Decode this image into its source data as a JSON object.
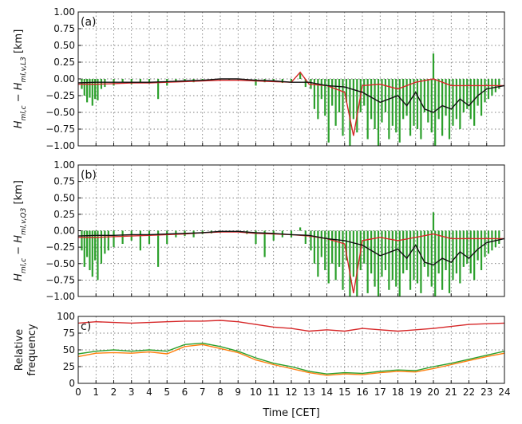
{
  "chart_data": [
    {
      "type": "bar",
      "panel_label": "(a)",
      "ylabel": "H_{ml,c} − H_{ml,v,L3} [km]",
      "ylim": [
        -1.0,
        1.0
      ],
      "yticks": [
        "1.00",
        "0.75",
        "0.50",
        "0.25",
        "0.00",
        "−0.25",
        "−0.50",
        "−0.75",
        "−1.00"
      ],
      "xlim": [
        0,
        24
      ],
      "grid": true,
      "bars": {
        "color": "#2ca02c",
        "x": [
          0.2,
          0.35,
          0.5,
          0.65,
          0.8,
          0.95,
          1.1,
          1.3,
          1.5,
          2.0,
          2.5,
          3.0,
          3.5,
          4.0,
          4.5,
          5.0,
          5.5,
          6.0,
          6.5,
          7.0,
          7.5,
          8.0,
          8.5,
          9.0,
          9.5,
          10.0,
          10.5,
          11.0,
          11.5,
          12.0,
          12.5,
          12.8,
          13.1,
          13.3,
          13.5,
          13.7,
          13.9,
          14.1,
          14.3,
          14.5,
          14.7,
          14.9,
          15.1,
          15.3,
          15.5,
          15.7,
          15.9,
          16.1,
          16.3,
          16.5,
          16.7,
          16.9,
          17.1,
          17.3,
          17.5,
          17.7,
          17.9,
          18.1,
          18.3,
          18.5,
          18.7,
          18.9,
          19.1,
          19.3,
          19.5,
          19.7,
          19.9,
          20.0,
          20.1,
          20.3,
          20.5,
          20.7,
          20.9,
          21.1,
          21.3,
          21.5,
          21.7,
          21.9,
          22.1,
          22.3,
          22.5,
          22.7,
          22.9,
          23.1,
          23.3,
          23.5,
          23.7
        ],
        "values": [
          -0.15,
          -0.25,
          -0.35,
          -0.28,
          -0.4,
          -0.3,
          -0.32,
          -0.15,
          -0.12,
          -0.1,
          -0.05,
          -0.08,
          -0.06,
          -0.07,
          -0.3,
          -0.1,
          -0.05,
          -0.04,
          -0.05,
          -0.02,
          -0.02,
          -0.01,
          -0.02,
          -0.01,
          -0.03,
          -0.1,
          -0.05,
          -0.04,
          -0.06,
          -0.05,
          0.1,
          -0.12,
          -0.15,
          -0.45,
          -0.6,
          -0.3,
          -0.55,
          -0.95,
          -0.4,
          -0.7,
          -0.5,
          -0.85,
          -0.35,
          -1.0,
          -0.6,
          -0.8,
          -0.5,
          -0.4,
          -0.9,
          -0.6,
          -0.75,
          -1.0,
          -0.65,
          -0.5,
          -0.9,
          -0.7,
          -0.8,
          -0.95,
          -0.6,
          -0.55,
          -0.85,
          -0.7,
          -0.75,
          -0.9,
          -0.5,
          -0.65,
          -0.8,
          0.38,
          -1.0,
          -0.6,
          -0.85,
          -0.55,
          -0.9,
          -0.7,
          -0.6,
          -0.75,
          -0.5,
          -0.45,
          -0.6,
          -0.7,
          -0.4,
          -0.55,
          -0.35,
          -0.3,
          -0.25,
          -0.2,
          -0.15
        ]
      },
      "lines": [
        {
          "color": "#d62728",
          "x": [
            0,
            1,
            2,
            3,
            4,
            5,
            6,
            7,
            8,
            9,
            10,
            11,
            12,
            12.5,
            13,
            14,
            15,
            15.5,
            16,
            17,
            18,
            19,
            20,
            21,
            22,
            23,
            24
          ],
          "values": [
            -0.08,
            -0.08,
            -0.07,
            -0.06,
            -0.06,
            -0.05,
            -0.04,
            -0.03,
            -0.02,
            -0.02,
            -0.03,
            -0.04,
            -0.05,
            0.1,
            -0.08,
            -0.1,
            -0.2,
            -0.85,
            -0.1,
            -0.08,
            -0.15,
            -0.05,
            0.0,
            -0.1,
            -0.1,
            -0.1,
            -0.1
          ]
        },
        {
          "color": "#111111",
          "x": [
            0,
            1,
            2,
            3,
            4,
            5,
            6,
            7,
            8,
            9,
            10,
            11,
            12,
            13,
            14,
            15,
            16,
            17,
            18,
            18.5,
            19,
            19.5,
            20,
            20.5,
            21,
            21.5,
            22,
            22.5,
            23,
            24
          ],
          "values": [
            -0.06,
            -0.05,
            -0.05,
            -0.05,
            -0.05,
            -0.04,
            -0.03,
            -0.02,
            0.0,
            0.0,
            -0.02,
            -0.03,
            -0.05,
            -0.05,
            -0.1,
            -0.12,
            -0.2,
            -0.35,
            -0.25,
            -0.4,
            -0.2,
            -0.45,
            -0.5,
            -0.4,
            -0.45,
            -0.3,
            -0.4,
            -0.25,
            -0.15,
            -0.1
          ]
        }
      ]
    },
    {
      "type": "bar",
      "panel_label": "(b)",
      "ylabel": "H_{ml,c} − H_{ml,v,Q3} [km]",
      "ylim": [
        -1.0,
        1.0
      ],
      "yticks": [
        "1.00",
        "0.75",
        "0.50",
        "0.25",
        "0.00",
        "−0.25",
        "−0.50",
        "−0.75",
        "−1.00"
      ],
      "xlim": [
        0,
        24
      ],
      "grid": true,
      "bars": {
        "color": "#2ca02c",
        "x": [
          0.2,
          0.35,
          0.5,
          0.65,
          0.8,
          0.95,
          1.1,
          1.3,
          1.5,
          1.7,
          2.0,
          2.5,
          3.0,
          3.5,
          4.0,
          4.5,
          5.0,
          5.5,
          6.0,
          6.5,
          7.0,
          7.5,
          8.0,
          8.5,
          9.0,
          9.5,
          10.0,
          10.5,
          11.0,
          11.5,
          12.0,
          12.5,
          12.8,
          13.1,
          13.3,
          13.5,
          13.7,
          13.9,
          14.1,
          14.3,
          14.5,
          14.7,
          14.9,
          15.1,
          15.3,
          15.5,
          15.7,
          15.9,
          16.1,
          16.3,
          16.5,
          16.7,
          16.9,
          17.1,
          17.3,
          17.5,
          17.7,
          17.9,
          18.1,
          18.3,
          18.5,
          18.7,
          18.9,
          19.1,
          19.3,
          19.5,
          19.7,
          19.9,
          20.0,
          20.1,
          20.3,
          20.5,
          20.7,
          20.9,
          21.1,
          21.3,
          21.5,
          21.7,
          21.9,
          22.1,
          22.3,
          22.5,
          22.7,
          22.9,
          23.1,
          23.3,
          23.5,
          23.7
        ],
        "values": [
          -0.3,
          -0.55,
          -0.4,
          -0.6,
          -0.7,
          -0.45,
          -0.75,
          -0.5,
          -0.35,
          -0.3,
          -0.25,
          -0.2,
          -0.15,
          -0.3,
          -0.2,
          -0.55,
          -0.2,
          -0.1,
          -0.08,
          -0.1,
          -0.05,
          -0.04,
          -0.03,
          -0.02,
          -0.02,
          -0.05,
          -0.2,
          -0.4,
          -0.15,
          -0.1,
          -0.1,
          0.05,
          -0.2,
          -0.3,
          -0.5,
          -0.7,
          -0.4,
          -0.6,
          -0.8,
          -0.5,
          -0.75,
          -0.55,
          -0.9,
          -0.45,
          -1.0,
          -0.7,
          -1.0,
          -0.6,
          -0.5,
          -0.95,
          -0.65,
          -0.85,
          -1.0,
          -0.7,
          -0.6,
          -0.9,
          -0.75,
          -0.85,
          -1.0,
          -0.65,
          -0.6,
          -0.9,
          -0.75,
          -0.8,
          -0.95,
          -0.55,
          -0.7,
          -0.85,
          0.28,
          -1.0,
          -0.65,
          -0.9,
          -0.6,
          -0.95,
          -0.75,
          -0.65,
          -0.8,
          -0.55,
          -0.5,
          -0.65,
          -0.75,
          -0.45,
          -0.6,
          -0.4,
          -0.35,
          -0.3,
          -0.25,
          -0.2
        ]
      },
      "lines": [
        {
          "color": "#d62728",
          "x": [
            0,
            1,
            2,
            3,
            4,
            5,
            6,
            7,
            8,
            9,
            10,
            11,
            12,
            13,
            14,
            15,
            15.5,
            16,
            17,
            18,
            19,
            20,
            21,
            22,
            23,
            24
          ],
          "values": [
            -0.1,
            -0.1,
            -0.09,
            -0.08,
            -0.07,
            -0.06,
            -0.05,
            -0.03,
            -0.02,
            -0.02,
            -0.04,
            -0.05,
            -0.06,
            -0.08,
            -0.12,
            -0.2,
            -0.95,
            -0.15,
            -0.1,
            -0.15,
            -0.1,
            -0.05,
            -0.12,
            -0.12,
            -0.12,
            -0.12
          ]
        },
        {
          "color": "#111111",
          "x": [
            0,
            1,
            2,
            3,
            4,
            5,
            6,
            7,
            8,
            9,
            10,
            11,
            12,
            13,
            14,
            15,
            16,
            17,
            18,
            18.5,
            19,
            19.5,
            20,
            20.5,
            21,
            21.5,
            22,
            22.5,
            23,
            24
          ],
          "values": [
            -0.08,
            -0.07,
            -0.07,
            -0.06,
            -0.06,
            -0.05,
            -0.04,
            -0.03,
            -0.01,
            -0.01,
            -0.03,
            -0.04,
            -0.06,
            -0.07,
            -0.12,
            -0.15,
            -0.22,
            -0.38,
            -0.28,
            -0.42,
            -0.22,
            -0.48,
            -0.52,
            -0.42,
            -0.48,
            -0.32,
            -0.42,
            -0.28,
            -0.18,
            -0.12
          ]
        }
      ]
    },
    {
      "type": "line",
      "panel_label": "c)",
      "ylabel": "Relative frequency",
      "ylim": [
        0,
        100
      ],
      "yticks": [
        "100",
        "75",
        "50",
        "25",
        "0"
      ],
      "xlim": [
        0,
        24
      ],
      "xticks": [
        "0",
        "1",
        "2",
        "3",
        "4",
        "5",
        "6",
        "7",
        "8",
        "9",
        "10",
        "11",
        "12",
        "13",
        "14",
        "15",
        "16",
        "17",
        "18",
        "19",
        "20",
        "21",
        "22",
        "23",
        "24"
      ],
      "xlabel": "Time [CET]",
      "grid": true,
      "series": [
        {
          "color": "#d62728",
          "x": [
            0,
            1,
            2,
            3,
            4,
            5,
            6,
            7,
            8,
            9,
            10,
            11,
            12,
            13,
            14,
            15,
            16,
            17,
            18,
            19,
            20,
            21,
            22,
            23,
            24
          ],
          "values": [
            90,
            92,
            91,
            90,
            91,
            92,
            93,
            93,
            94,
            92,
            88,
            84,
            82,
            78,
            80,
            78,
            82,
            80,
            78,
            80,
            82,
            85,
            88,
            89,
            90
          ]
        },
        {
          "color": "#ff7f0e",
          "x": [
            0,
            1,
            2,
            3,
            4,
            5,
            6,
            7,
            8,
            9,
            10,
            11,
            12,
            13,
            14,
            15,
            16,
            17,
            18,
            19,
            20,
            21,
            22,
            23,
            24
          ],
          "values": [
            40,
            45,
            46,
            45,
            47,
            44,
            55,
            58,
            52,
            46,
            35,
            28,
            22,
            16,
            12,
            14,
            13,
            16,
            18,
            17,
            22,
            28,
            34,
            40,
            45
          ]
        },
        {
          "color": "#2ca02c",
          "x": [
            0,
            1,
            2,
            3,
            4,
            5,
            6,
            7,
            8,
            9,
            10,
            11,
            12,
            13,
            14,
            15,
            16,
            17,
            18,
            19,
            20,
            21,
            22,
            23,
            24
          ],
          "values": [
            44,
            48,
            50,
            48,
            50,
            48,
            58,
            60,
            55,
            48,
            38,
            30,
            25,
            18,
            14,
            16,
            15,
            18,
            20,
            19,
            25,
            30,
            36,
            42,
            48
          ]
        }
      ]
    }
  ]
}
